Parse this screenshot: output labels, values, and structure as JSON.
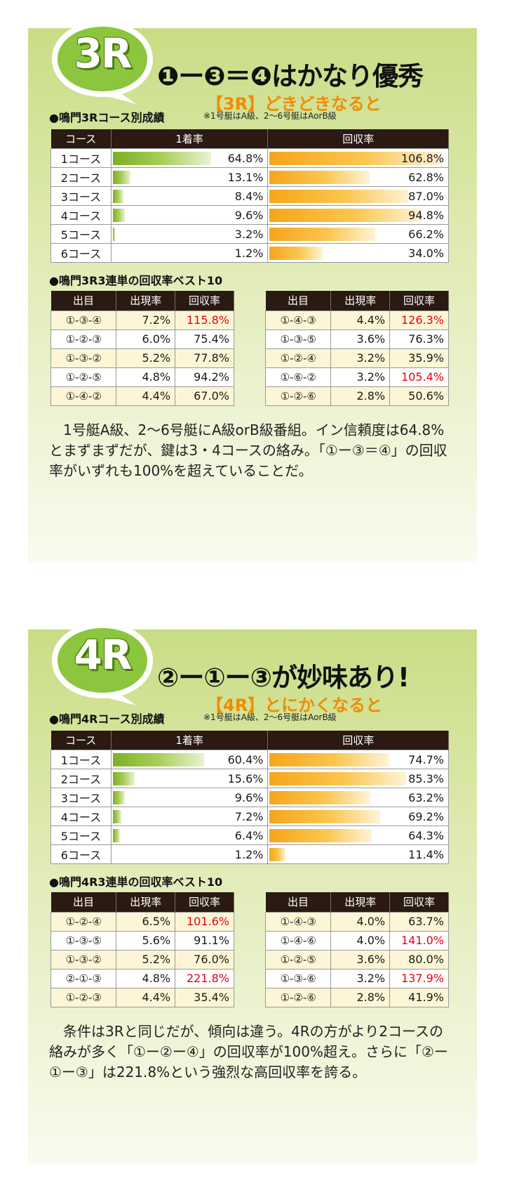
{
  "sections": [
    {
      "badge": "3R",
      "headline": "❶ー❸＝❹はかなり優秀",
      "subtitle": "【3R】どきどきなると",
      "course_label": "●鳴門3Rコース別成績",
      "note": "※1号艇はA級、2〜6号艇はAorB級",
      "course_headers": [
        "コース",
        "1着率",
        "回収率"
      ],
      "courses": [
        {
          "name": "1コース",
          "win": "64.8%",
          "win_value": 64.8,
          "ret": "106.8%",
          "ret_value": 106.8
        },
        {
          "name": "2コース",
          "win": "13.1%",
          "win_value": 13.1,
          "ret": "62.8%",
          "ret_value": 62.8
        },
        {
          "name": "3コース",
          "win": "8.4%",
          "win_value": 8.4,
          "ret": "87.0%",
          "ret_value": 87.0
        },
        {
          "name": "4コース",
          "win": "9.6%",
          "win_value": 9.6,
          "ret": "94.8%",
          "ret_value": 94.8
        },
        {
          "name": "5コース",
          "win": "3.2%",
          "win_value": 3.2,
          "ret": "66.2%",
          "ret_value": 66.2
        },
        {
          "name": "6コース",
          "win": "1.2%",
          "win_value": 1.2,
          "ret": "34.0%",
          "ret_value": 34.0
        }
      ],
      "best_label": "●鳴門3R3連単の回収率ベスト10",
      "best_headers": [
        "出目",
        "出現率",
        "回収率"
      ],
      "best_left": [
        {
          "combo": "①-③-④",
          "rate": "7.2%",
          "ret": "115.8%",
          "highlight": true
        },
        {
          "combo": "①-②-③",
          "rate": "6.0%",
          "ret": "75.4%",
          "highlight": false
        },
        {
          "combo": "①-③-②",
          "rate": "5.2%",
          "ret": "77.8%",
          "highlight": false
        },
        {
          "combo": "①-②-⑤",
          "rate": "4.8%",
          "ret": "94.2%",
          "highlight": false
        },
        {
          "combo": "①-④-②",
          "rate": "4.4%",
          "ret": "67.0%",
          "highlight": false
        }
      ],
      "best_right": [
        {
          "combo": "①-④-③",
          "rate": "4.4%",
          "ret": "126.3%",
          "highlight": true
        },
        {
          "combo": "①-③-⑤",
          "rate": "3.6%",
          "ret": "76.3%",
          "highlight": false
        },
        {
          "combo": "①-②-④",
          "rate": "3.2%",
          "ret": "35.9%",
          "highlight": false
        },
        {
          "combo": "①-⑥-②",
          "rate": "3.2%",
          "ret": "105.4%",
          "highlight": true
        },
        {
          "combo": "①-②-⑥",
          "rate": "2.8%",
          "ret": "50.6%",
          "highlight": false
        }
      ],
      "body": "1号艇A級、2〜6号艇にA級orB級番組。イン信頼度は64.8%とまずまずだが、鍵は3・4コースの絡み。「①ー③＝④」の回収率がいずれも100%を超えていることだ。"
    },
    {
      "badge": "4R",
      "headline": "②ー①ー③が妙味あり!",
      "subtitle": "【4R】とにかくなると",
      "course_label": "●鳴門4Rコース別成績",
      "note": "※1号艇はA級、2〜6号艇はAorB級",
      "course_headers": [
        "コース",
        "1着率",
        "回収率"
      ],
      "courses": [
        {
          "name": "1コース",
          "win": "60.4%",
          "win_value": 60.4,
          "ret": "74.7%",
          "ret_value": 74.7
        },
        {
          "name": "2コース",
          "win": "15.6%",
          "win_value": 15.6,
          "ret": "85.3%",
          "ret_value": 85.3
        },
        {
          "name": "3コース",
          "win": "9.6%",
          "win_value": 9.6,
          "ret": "63.2%",
          "ret_value": 63.2
        },
        {
          "name": "4コース",
          "win": "7.2%",
          "win_value": 7.2,
          "ret": "69.2%",
          "ret_value": 69.2
        },
        {
          "name": "5コース",
          "win": "6.4%",
          "win_value": 6.4,
          "ret": "64.3%",
          "ret_value": 64.3
        },
        {
          "name": "6コース",
          "win": "1.2%",
          "win_value": 1.2,
          "ret": "11.4%",
          "ret_value": 11.4
        }
      ],
      "best_label": "●鳴門4R3連単の回収率ベスト10",
      "best_headers": [
        "出目",
        "出現率",
        "回収率"
      ],
      "best_left": [
        {
          "combo": "①-②-④",
          "rate": "6.5%",
          "ret": "101.6%",
          "highlight": true
        },
        {
          "combo": "①-③-⑤",
          "rate": "5.6%",
          "ret": "91.1%",
          "highlight": false
        },
        {
          "combo": "①-③-②",
          "rate": "5.2%",
          "ret": "76.0%",
          "highlight": false
        },
        {
          "combo": "②-①-③",
          "rate": "4.8%",
          "ret": "221.8%",
          "highlight": true
        },
        {
          "combo": "①-②-③",
          "rate": "4.4%",
          "ret": "35.4%",
          "highlight": false
        }
      ],
      "best_right": [
        {
          "combo": "①-④-③",
          "rate": "4.0%",
          "ret": "63.7%",
          "highlight": false
        },
        {
          "combo": "①-④-⑥",
          "rate": "4.0%",
          "ret": "141.0%",
          "highlight": true
        },
        {
          "combo": "①-②-⑤",
          "rate": "3.6%",
          "ret": "80.0%",
          "highlight": false
        },
        {
          "combo": "①-③-⑥",
          "rate": "3.2%",
          "ret": "137.9%",
          "highlight": true
        },
        {
          "combo": "①-②-⑥",
          "rate": "2.8%",
          "ret": "41.9%",
          "highlight": false
        }
      ],
      "body": "条件は3Rと同じだが、傾向は違う。4Rの方がより2コースの絡みが多く「①ー②ー④」の回収率が100%超え。さらに「②ー①ー③」は221.8%という強烈な高回収率を誇る。"
    }
  ],
  "colors": {
    "green": "#8cc63f",
    "orange": "#f7a51a",
    "highlight_red": "#e60012"
  }
}
